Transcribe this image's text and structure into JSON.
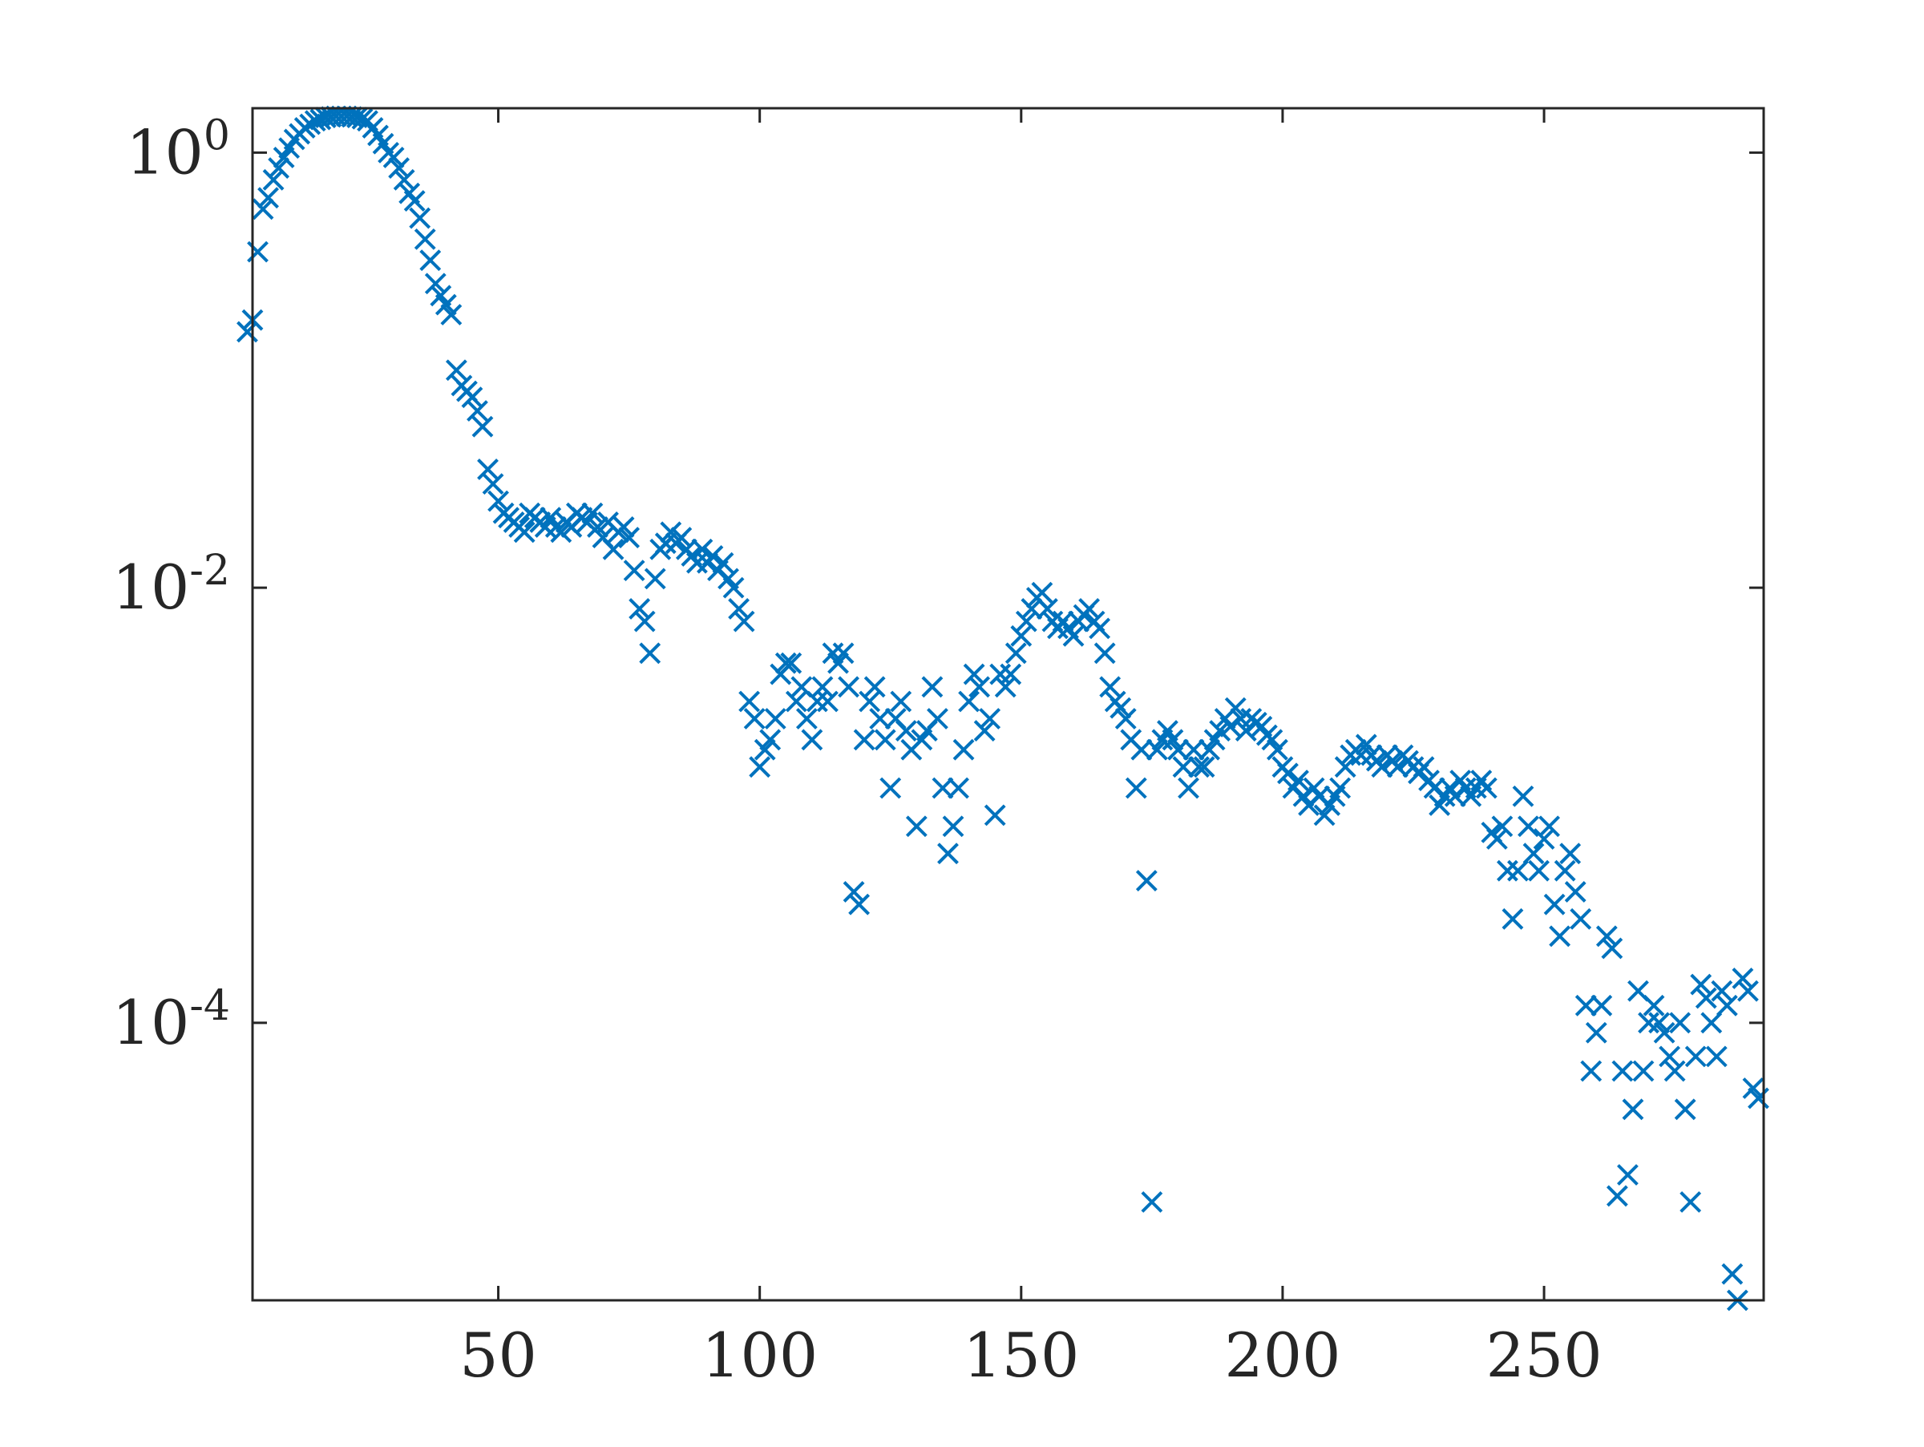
{
  "chart_data": {
    "type": "scatter",
    "title": "",
    "xlabel": "",
    "ylabel": "",
    "xlim": [
      3,
      292
    ],
    "ylim": [
      5.3e-06,
      1.6
    ],
    "yscale": "log",
    "grid": false,
    "legend": "none",
    "x_ticks": [
      {
        "value": 50,
        "label": "50"
      },
      {
        "value": 100,
        "label": "100"
      },
      {
        "value": 150,
        "label": "150"
      },
      {
        "value": 200,
        "label": "200"
      },
      {
        "value": 250,
        "label": "250"
      }
    ],
    "y_ticks": [
      {
        "value": 1,
        "label": "10",
        "exp": "0"
      },
      {
        "value": 0.01,
        "label": "10",
        "exp": "-2"
      },
      {
        "value": 0.0001,
        "label": "10",
        "exp": "-4"
      }
    ],
    "marker": "x",
    "color": "#0072BD",
    "series": [
      {
        "points": [
          [
            2,
            0.15
          ],
          [
            3,
            0.17
          ],
          [
            4,
            0.35
          ],
          [
            5,
            0.55
          ],
          [
            6,
            0.62
          ],
          [
            7,
            0.75
          ],
          [
            8,
            0.85
          ],
          [
            9,
            0.95
          ],
          [
            10,
            1.05
          ],
          [
            11,
            1.15
          ],
          [
            12,
            1.22
          ],
          [
            13,
            1.3
          ],
          [
            14,
            1.35
          ],
          [
            15,
            1.4
          ],
          [
            16,
            1.42
          ],
          [
            17,
            1.45
          ],
          [
            18,
            1.46
          ],
          [
            19,
            1.47
          ],
          [
            20,
            1.47
          ],
          [
            21,
            1.47
          ],
          [
            22,
            1.46
          ],
          [
            23,
            1.45
          ],
          [
            24,
            1.43
          ],
          [
            25,
            1.4
          ],
          [
            26,
            1.3
          ],
          [
            27,
            1.2
          ],
          [
            28,
            1.1
          ],
          [
            29,
            1.0
          ],
          [
            30,
            0.95
          ],
          [
            31,
            0.85
          ],
          [
            32,
            0.75
          ],
          [
            33,
            0.65
          ],
          [
            34,
            0.6
          ],
          [
            35,
            0.5
          ],
          [
            36,
            0.4
          ],
          [
            37,
            0.32
          ],
          [
            38,
            0.25
          ],
          [
            39,
            0.22
          ],
          [
            40,
            0.2
          ],
          [
            41,
            0.18
          ],
          [
            42,
            0.1
          ],
          [
            43,
            0.085
          ],
          [
            44,
            0.08
          ],
          [
            45,
            0.075
          ],
          [
            46,
            0.065
          ],
          [
            47,
            0.055
          ],
          [
            48,
            0.035
          ],
          [
            49,
            0.03
          ],
          [
            50,
            0.025
          ],
          [
            51,
            0.022
          ],
          [
            52,
            0.021
          ],
          [
            53,
            0.02
          ],
          [
            54,
            0.019
          ],
          [
            55,
            0.018
          ],
          [
            56,
            0.022
          ],
          [
            57,
            0.021
          ],
          [
            58,
            0.02
          ],
          [
            59,
            0.019
          ],
          [
            60,
            0.021
          ],
          [
            61,
            0.019
          ],
          [
            62,
            0.018
          ],
          [
            63,
            0.02
          ],
          [
            64,
            0.019
          ],
          [
            65,
            0.022
          ],
          [
            66,
            0.021
          ],
          [
            67,
            0.02
          ],
          [
            68,
            0.022
          ],
          [
            69,
            0.019
          ],
          [
            70,
            0.017
          ],
          [
            71,
            0.02
          ],
          [
            72,
            0.015
          ],
          [
            73,
            0.018
          ],
          [
            74,
            0.019
          ],
          [
            75,
            0.017
          ],
          [
            76,
            0.012
          ],
          [
            77,
            0.008
          ],
          [
            78,
            0.007
          ],
          [
            79,
            0.005
          ],
          [
            80,
            0.011
          ],
          [
            81,
            0.015
          ],
          [
            82,
            0.016
          ],
          [
            83,
            0.018
          ],
          [
            84,
            0.016
          ],
          [
            85,
            0.017
          ],
          [
            86,
            0.015
          ],
          [
            87,
            0.014
          ],
          [
            88,
            0.013
          ],
          [
            89,
            0.015
          ],
          [
            90,
            0.013
          ],
          [
            91,
            0.014
          ],
          [
            92,
            0.012
          ],
          [
            93,
            0.013
          ],
          [
            94,
            0.011
          ],
          [
            95,
            0.01
          ],
          [
            96,
            0.008
          ],
          [
            97,
            0.007
          ],
          [
            98,
            0.003
          ],
          [
            99,
            0.0025
          ],
          [
            100,
            0.0015
          ],
          [
            101,
            0.0018
          ],
          [
            102,
            0.002
          ],
          [
            103,
            0.0025
          ],
          [
            104,
            0.004
          ],
          [
            105,
            0.0045
          ],
          [
            106,
            0.0045
          ],
          [
            107,
            0.003
          ],
          [
            108,
            0.0035
          ],
          [
            109,
            0.0025
          ],
          [
            110,
            0.002
          ],
          [
            111,
            0.003
          ],
          [
            112,
            0.0035
          ],
          [
            113,
            0.003
          ],
          [
            114,
            0.005
          ],
          [
            115,
            0.0045
          ],
          [
            116,
            0.005
          ],
          [
            117,
            0.0035
          ],
          [
            118,
            0.0004
          ],
          [
            119,
            0.00035
          ],
          [
            120,
            0.002
          ],
          [
            121,
            0.003
          ],
          [
            122,
            0.0035
          ],
          [
            123,
            0.0025
          ],
          [
            124,
            0.002
          ],
          [
            125,
            0.0012
          ],
          [
            126,
            0.0025
          ],
          [
            127,
            0.003
          ],
          [
            128,
            0.0022
          ],
          [
            129,
            0.0018
          ],
          [
            130,
            0.0008
          ],
          [
            131,
            0.002
          ],
          [
            132,
            0.0022
          ],
          [
            133,
            0.0035
          ],
          [
            134,
            0.0025
          ],
          [
            135,
            0.0012
          ],
          [
            136,
            0.0006
          ],
          [
            137,
            0.0008
          ],
          [
            138,
            0.0012
          ],
          [
            139,
            0.0018
          ],
          [
            140,
            0.003
          ],
          [
            141,
            0.004
          ],
          [
            142,
            0.0035
          ],
          [
            143,
            0.0022
          ],
          [
            144,
            0.0025
          ],
          [
            145,
            0.0009
          ],
          [
            146,
            0.004
          ],
          [
            147,
            0.0035
          ],
          [
            148,
            0.004
          ],
          [
            149,
            0.005
          ],
          [
            150,
            0.006
          ],
          [
            151,
            0.007
          ],
          [
            152,
            0.008
          ],
          [
            153,
            0.009
          ],
          [
            154,
            0.0095
          ],
          [
            155,
            0.008
          ],
          [
            156,
            0.007
          ],
          [
            157,
            0.0065
          ],
          [
            158,
            0.007
          ],
          [
            159,
            0.0065
          ],
          [
            160,
            0.006
          ],
          [
            161,
            0.007
          ],
          [
            162,
            0.0075
          ],
          [
            163,
            0.008
          ],
          [
            164,
            0.007
          ],
          [
            165,
            0.0065
          ],
          [
            166,
            0.005
          ],
          [
            167,
            0.0035
          ],
          [
            168,
            0.003
          ],
          [
            169,
            0.0028
          ],
          [
            170,
            0.0025
          ],
          [
            171,
            0.002
          ],
          [
            172,
            0.0012
          ],
          [
            173,
            0.0018
          ],
          [
            174,
            0.00045
          ],
          [
            175,
            1.5e-05
          ],
          [
            176,
            0.0018
          ],
          [
            177,
            0.002
          ],
          [
            178,
            0.0022
          ],
          [
            179,
            0.002
          ],
          [
            180,
            0.0018
          ],
          [
            181,
            0.0015
          ],
          [
            182,
            0.0012
          ],
          [
            183,
            0.0018
          ],
          [
            184,
            0.0015
          ],
          [
            185,
            0.0015
          ],
          [
            186,
            0.0018
          ],
          [
            187,
            0.002
          ],
          [
            188,
            0.0022
          ],
          [
            189,
            0.0025
          ],
          [
            190,
            0.0023
          ],
          [
            191,
            0.0028
          ],
          [
            192,
            0.0025
          ],
          [
            193,
            0.0022
          ],
          [
            194,
            0.0025
          ],
          [
            195,
            0.0024
          ],
          [
            196,
            0.0023
          ],
          [
            197,
            0.0021
          ],
          [
            198,
            0.002
          ],
          [
            199,
            0.0018
          ],
          [
            200,
            0.0015
          ],
          [
            201,
            0.0014
          ],
          [
            202,
            0.0012
          ],
          [
            203,
            0.0013
          ],
          [
            204,
            0.0011
          ],
          [
            205,
            0.001
          ],
          [
            206,
            0.0012
          ],
          [
            207,
            0.0011
          ],
          [
            208,
            0.0009
          ],
          [
            209,
            0.001
          ],
          [
            210,
            0.0011
          ],
          [
            211,
            0.0012
          ],
          [
            212,
            0.0015
          ],
          [
            213,
            0.0017
          ],
          [
            214,
            0.0018
          ],
          [
            215,
            0.0017
          ],
          [
            216,
            0.0019
          ],
          [
            217,
            0.0017
          ],
          [
            218,
            0.0016
          ],
          [
            219,
            0.0015
          ],
          [
            220,
            0.0017
          ],
          [
            221,
            0.0016
          ],
          [
            222,
            0.0015
          ],
          [
            223,
            0.0017
          ],
          [
            224,
            0.0016
          ],
          [
            225,
            0.0015
          ],
          [
            226,
            0.0014
          ],
          [
            227,
            0.0015
          ],
          [
            228,
            0.0013
          ],
          [
            229,
            0.0012
          ],
          [
            230,
            0.001
          ],
          [
            231,
            0.0011
          ],
          [
            232,
            0.0012
          ],
          [
            233,
            0.0011
          ],
          [
            234,
            0.0013
          ],
          [
            235,
            0.0012
          ],
          [
            236,
            0.0011
          ],
          [
            237,
            0.0012
          ],
          [
            238,
            0.0013
          ],
          [
            239,
            0.0012
          ],
          [
            240,
            0.00075
          ],
          [
            241,
            0.0007
          ],
          [
            242,
            0.0008
          ],
          [
            243,
            0.0005
          ],
          [
            244,
            0.0003
          ],
          [
            245,
            0.0005
          ],
          [
            246,
            0.0011
          ],
          [
            247,
            0.0008
          ],
          [
            248,
            0.0006
          ],
          [
            249,
            0.0005
          ],
          [
            250,
            0.0007
          ],
          [
            251,
            0.0008
          ],
          [
            252,
            0.00035
          ],
          [
            253,
            0.00025
          ],
          [
            254,
            0.0005
          ],
          [
            255,
            0.0006
          ],
          [
            256,
            0.0004
          ],
          [
            257,
            0.0003
          ],
          [
            258,
            0.00012
          ],
          [
            259,
            6e-05
          ],
          [
            260,
            9e-05
          ],
          [
            261,
            0.00012
          ],
          [
            262,
            0.00025
          ],
          [
            263,
            0.00022
          ],
          [
            264,
            1.6e-05
          ],
          [
            265,
            6e-05
          ],
          [
            266,
            2e-05
          ],
          [
            267,
            4e-05
          ],
          [
            268,
            0.00014
          ],
          [
            269,
            6e-05
          ],
          [
            270,
            0.0001
          ],
          [
            271,
            0.00012
          ],
          [
            272,
            0.0001
          ],
          [
            273,
            9e-05
          ],
          [
            274,
            7e-05
          ],
          [
            275,
            6e-05
          ],
          [
            276,
            0.0001
          ],
          [
            277,
            4e-05
          ],
          [
            278,
            1.5e-05
          ],
          [
            279,
            7e-05
          ],
          [
            280,
            0.00015
          ],
          [
            281,
            0.00013
          ],
          [
            282,
            0.0001
          ],
          [
            283,
            7e-05
          ],
          [
            284,
            0.00014
          ],
          [
            285,
            0.00012
          ],
          [
            286,
            7e-06
          ],
          [
            287,
            5.3e-06
          ],
          [
            288,
            0.00016
          ],
          [
            289,
            0.00014
          ],
          [
            290,
            5e-05
          ],
          [
            291,
            4.5e-05
          ]
        ]
      }
    ]
  }
}
